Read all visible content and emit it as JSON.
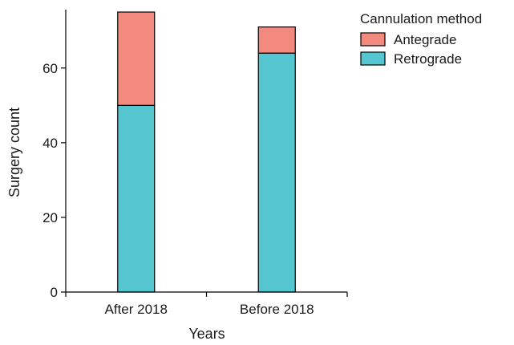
{
  "chart_data": {
    "type": "bar",
    "stacked": true,
    "categories": [
      "After 2018",
      "Before 2018"
    ],
    "series": [
      {
        "name": "Retrograde",
        "values": [
          50,
          64
        ],
        "color": "#55c6cf"
      },
      {
        "name": "Antegrade",
        "values": [
          25,
          7
        ],
        "color": "#f28a80"
      }
    ],
    "legend_order": [
      "Antegrade",
      "Retrograde"
    ],
    "legend_title": "Cannulation method",
    "legend_position": "top-right",
    "xlabel": "Years",
    "ylabel": "Surgery count",
    "ylim": [
      0,
      75
    ],
    "yticks": [
      0,
      20,
      40,
      60
    ],
    "grid": false
  }
}
